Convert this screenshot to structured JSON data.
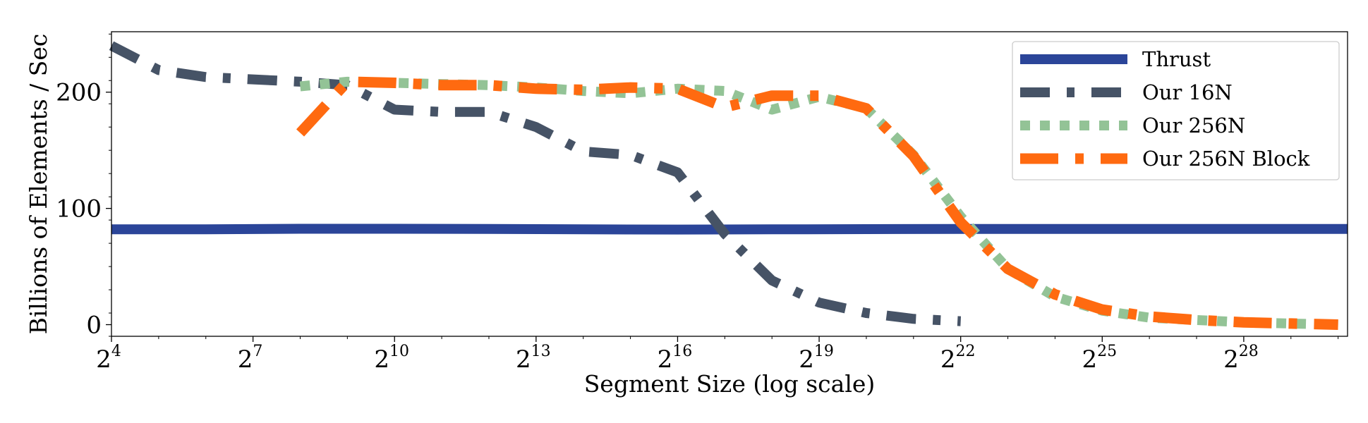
{
  "chart_data": {
    "type": "line",
    "title": "",
    "xlabel": "Segment Size (log scale)",
    "ylabel": "Billions of Elements / Sec",
    "x_scale": "log2",
    "x_tick_base": "2",
    "x_tick_exponents": [
      "4",
      "7",
      "10",
      "13",
      "16",
      "19",
      "22",
      "25",
      "28"
    ],
    "xlim_exponent": [
      4,
      30.2
    ],
    "ylim": [
      -10,
      252
    ],
    "y_ticks": [
      "0",
      "100",
      "200"
    ],
    "y_tick_values": [
      0,
      100,
      200
    ],
    "legend_position": "top-right",
    "grid": false,
    "series": [
      {
        "name": "Thrust",
        "color": "#2b4599",
        "style": "solid",
        "x_exponent": [
          4,
          6,
          8,
          10,
          12,
          14,
          16,
          18,
          20,
          22,
          24,
          26,
          28,
          30,
          30.2
        ],
        "values": [
          82,
          82,
          82.5,
          82.5,
          82.3,
          82,
          81.8,
          82,
          82.2,
          82.3,
          82.3,
          82.3,
          82.3,
          82.3,
          82.3
        ]
      },
      {
        "name": "Our 16N",
        "color": "#465366",
        "style": "dashed",
        "x_exponent": [
          4,
          5,
          6,
          7,
          8,
          9,
          10,
          11,
          12,
          13,
          14,
          15,
          16,
          17,
          18,
          19,
          20,
          21,
          22
        ],
        "values": [
          240,
          219,
          213,
          211,
          209,
          206,
          185,
          183,
          183,
          170,
          149,
          146,
          131,
          78,
          38,
          19,
          10,
          5,
          3
        ]
      },
      {
        "name": "Our 256N",
        "color": "#93c396",
        "style": "dotted",
        "x_exponent": [
          8,
          9,
          10,
          11,
          12,
          13,
          14,
          15,
          16,
          17,
          18,
          19,
          20,
          21,
          22,
          23,
          24,
          25,
          26,
          27,
          28,
          29,
          30
        ],
        "values": [
          205,
          209,
          208,
          207,
          206,
          204,
          201,
          199,
          203,
          201,
          185,
          196,
          186,
          146,
          93,
          48,
          24,
          12,
          6,
          4,
          2,
          1,
          0
        ]
      },
      {
        "name": "Our 256N Block",
        "color": "#ff6a10",
        "style": "dash-dot",
        "x_exponent": [
          8,
          9,
          10,
          11,
          12,
          13,
          14,
          15,
          16,
          17,
          18,
          19,
          20,
          21,
          22,
          23,
          24,
          25,
          26,
          27,
          28,
          29,
          30
        ],
        "values": [
          165,
          209,
          208,
          206,
          206,
          203,
          202,
          204,
          203,
          187,
          197,
          197,
          186,
          145,
          88,
          48,
          26,
          13,
          7,
          4,
          2,
          1,
          0
        ]
      }
    ]
  }
}
